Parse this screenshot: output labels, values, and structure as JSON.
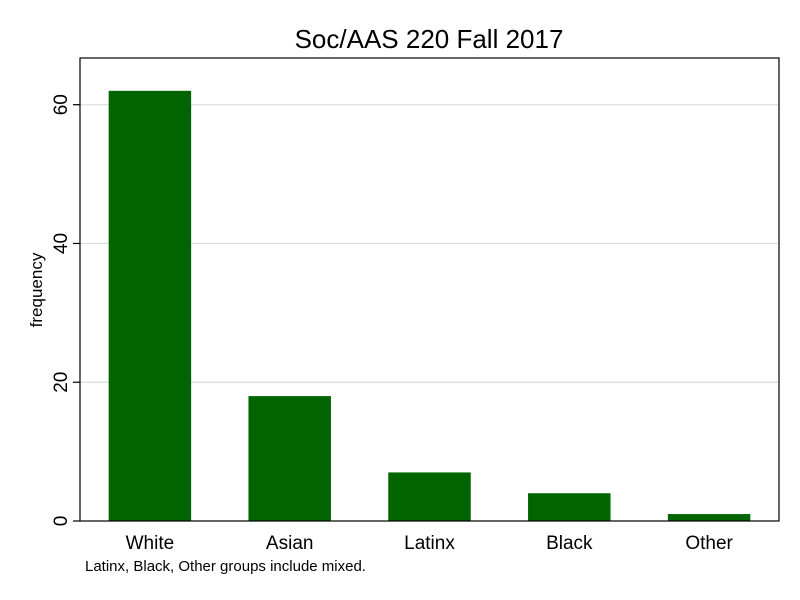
{
  "chart_data": {
    "type": "bar",
    "title": "Soc/AAS 220 Fall 2017",
    "categories": [
      "White",
      "Asian",
      "Latinx",
      "Black",
      "Other"
    ],
    "values": [
      62,
      18,
      7,
      4,
      1
    ],
    "xlabel": "",
    "ylabel": "frequency",
    "ylim": [
      0,
      65
    ],
    "yticks": [
      0,
      20,
      40,
      60
    ],
    "grid": true,
    "bar_color": "#006400",
    "note": "Latinx, Black, Other groups include mixed."
  }
}
